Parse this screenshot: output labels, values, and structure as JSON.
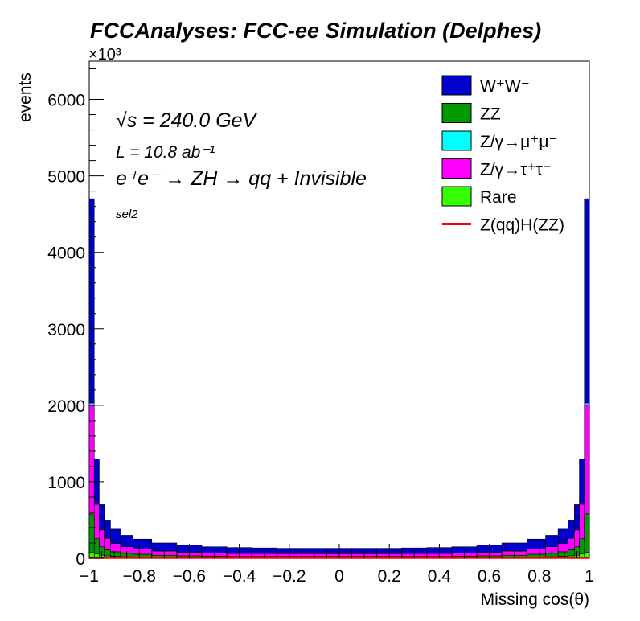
{
  "chart_data": {
    "type": "bar",
    "title": "FCCAnalyses: FCC-ee Simulation (Delphes)",
    "xlabel": "Missing cos(θ)",
    "ylabel": "events",
    "ylabel_multiplier": "×10³",
    "xlim": [
      -1,
      1
    ],
    "ylim": [
      0,
      6500
    ],
    "y_ticks": [
      "0",
      "1000",
      "2000",
      "3000",
      "4000",
      "5000",
      "6000"
    ],
    "y_tick_values": [
      0,
      1000,
      2000,
      3000,
      4000,
      5000,
      6000
    ],
    "x_ticks": [
      "−1",
      "−0.8",
      "−0.6",
      "−0.4",
      "−0.2",
      "0",
      "0.2",
      "0.4",
      "0.6",
      "0.8",
      "1"
    ],
    "x_tick_values": [
      -1,
      -0.8,
      -0.6,
      -0.4,
      -0.2,
      0,
      0.2,
      0.4,
      0.6,
      0.8,
      1
    ],
    "annotations": {
      "sqrt_s": "√s = 240.0 GeV",
      "lumi": "L = 10.8 ab⁻¹",
      "process": "e⁺e⁻ → ZH → qq + Invisible",
      "selection": "sel2"
    },
    "legend_position": "top-right",
    "stacked": true,
    "x_bin_centers": [
      -0.99,
      -0.97,
      -0.95,
      -0.93,
      -0.9,
      -0.85,
      -0.8,
      -0.7,
      -0.6,
      -0.5,
      -0.4,
      -0.3,
      -0.2,
      -0.1,
      0.0,
      0.1,
      0.2,
      0.3,
      0.4,
      0.5,
      0.6,
      0.7,
      0.8,
      0.85,
      0.9,
      0.93,
      0.95,
      0.97,
      0.99
    ],
    "series": [
      {
        "name": "Rare",
        "color": "#33ff00",
        "values": [
          80,
          55,
          40,
          32,
          25,
          20,
          18,
          15,
          12,
          11,
          10,
          10,
          10,
          10,
          10,
          10,
          10,
          10,
          10,
          11,
          12,
          15,
          18,
          20,
          25,
          32,
          40,
          55,
          80
        ]
      },
      {
        "name": "ZZ",
        "color": "#009900",
        "values": [
          500,
          200,
          110,
          80,
          60,
          45,
          35,
          25,
          20,
          17,
          15,
          15,
          15,
          15,
          15,
          15,
          15,
          15,
          15,
          17,
          20,
          25,
          35,
          45,
          60,
          80,
          110,
          200,
          500
        ]
      },
      {
        "name": "Z/γ→τ⁺τ⁻",
        "color": "#ff00ff",
        "values": [
          1420,
          450,
          220,
          150,
          110,
          85,
          70,
          55,
          45,
          40,
          38,
          36,
          35,
          35,
          35,
          35,
          35,
          36,
          38,
          40,
          45,
          55,
          70,
          85,
          110,
          150,
          220,
          450,
          1420
        ]
      },
      {
        "name": "Z/γ→μ⁺μ⁻",
        "color": "#00ffff",
        "values": [
          30,
          10,
          5,
          3,
          2,
          2,
          1,
          1,
          1,
          1,
          1,
          1,
          1,
          1,
          1,
          1,
          1,
          1,
          1,
          1,
          1,
          1,
          1,
          2,
          2,
          3,
          5,
          10,
          30
        ]
      },
      {
        "name": "W⁺W⁻",
        "color": "#0000cc",
        "values": [
          2670,
          585,
          325,
          225,
          183,
          148,
          126,
          104,
          92,
          81,
          76,
          73,
          69,
          69,
          69,
          69,
          69,
          73,
          76,
          81,
          92,
          104,
          126,
          148,
          183,
          225,
          325,
          585,
          2670
        ]
      }
    ],
    "signal": {
      "name": "Z(qq)H(ZZ)",
      "color": "#ff0000",
      "values": [
        3,
        2,
        2,
        2,
        2,
        2,
        2,
        2,
        2,
        2,
        2,
        2,
        2,
        2,
        2,
        2,
        2,
        2,
        2,
        2,
        2,
        2,
        2,
        2,
        2,
        2,
        2,
        2,
        3
      ]
    },
    "legend_entries": [
      {
        "label": "W⁺W⁻",
        "color": "#0000cc",
        "kind": "box"
      },
      {
        "label": "ZZ",
        "color": "#009900",
        "kind": "box"
      },
      {
        "label": "Z/γ→μ⁺μ⁻",
        "color": "#00ffff",
        "kind": "box"
      },
      {
        "label": "Z/γ→τ⁺τ⁻",
        "color": "#ff00ff",
        "kind": "box"
      },
      {
        "label": "Rare",
        "color": "#33ff00",
        "kind": "box"
      },
      {
        "label": "Z(qq)H(ZZ)",
        "color": "#ff0000",
        "kind": "line"
      }
    ]
  }
}
